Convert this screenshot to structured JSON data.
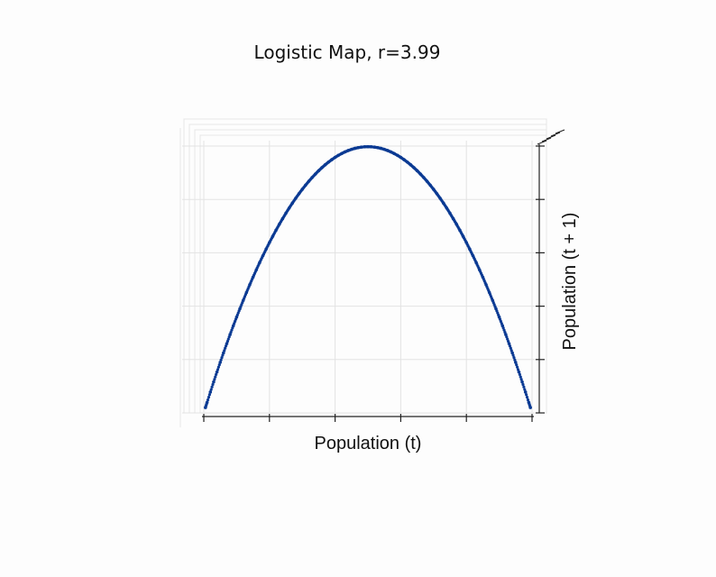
{
  "chart_data": {
    "type": "scatter",
    "title": "Logistic Map, r=3.99",
    "xlabel": "Population (t)",
    "ylabel": "Population (t + 1)",
    "r": 3.99,
    "xlim": [
      0,
      1
    ],
    "ylim": [
      0,
      1
    ],
    "grid": true,
    "tick_labels_shown": false,
    "x_ticks": [
      0,
      0.2,
      0.4,
      0.6,
      0.8,
      1.0
    ],
    "y_ticks": [
      0,
      0.2,
      0.4,
      0.6,
      0.8,
      1.0
    ],
    "marker_color": "#0b3a93",
    "series": [
      {
        "x": [
          0.005,
          0.01,
          0.02,
          0.03,
          0.04,
          0.05,
          0.06,
          0.07,
          0.08,
          0.09,
          0.1,
          0.11,
          0.12,
          0.13,
          0.14,
          0.15,
          0.16,
          0.17,
          0.18,
          0.19,
          0.2,
          0.21,
          0.22,
          0.23,
          0.24,
          0.25,
          0.26,
          0.27,
          0.28,
          0.29,
          0.3,
          0.31,
          0.32,
          0.33,
          0.34,
          0.35,
          0.36,
          0.37,
          0.38,
          0.39,
          0.4,
          0.41,
          0.42,
          0.43,
          0.44,
          0.45,
          0.46,
          0.47,
          0.48,
          0.49,
          0.5,
          0.51,
          0.52,
          0.53,
          0.54,
          0.55,
          0.56,
          0.57,
          0.58,
          0.59,
          0.6,
          0.61,
          0.62,
          0.63,
          0.64,
          0.65,
          0.66,
          0.67,
          0.68,
          0.69,
          0.7,
          0.71,
          0.72,
          0.73,
          0.74,
          0.75,
          0.76,
          0.77,
          0.78,
          0.79,
          0.8,
          0.81,
          0.82,
          0.83,
          0.84,
          0.85,
          0.86,
          0.87,
          0.88,
          0.89,
          0.9,
          0.91,
          0.92,
          0.93,
          0.94,
          0.95,
          0.96,
          0.97,
          0.98,
          0.99,
          0.995
        ],
        "y": [
          0.0199,
          0.0395,
          0.0782,
          0.1161,
          0.1532,
          0.1895,
          0.225,
          0.2597,
          0.2937,
          0.3268,
          0.3591,
          0.3906,
          0.4213,
          0.4513,
          0.4804,
          0.5087,
          0.5363,
          0.563,
          0.5889,
          0.6141,
          0.6384,
          0.6619,
          0.6847,
          0.7066,
          0.7278,
          0.7481,
          0.7677,
          0.7864,
          0.8044,
          0.8215,
          0.8379,
          0.8534,
          0.8682,
          0.8821,
          0.8953,
          0.9077,
          0.9192,
          0.93,
          0.94,
          0.9491,
          0.9576,
          0.9652,
          0.972,
          0.978,
          0.9832,
          0.9876,
          0.9912,
          0.994,
          0.996,
          0.9972,
          0.9975,
          0.9972,
          0.996,
          0.994,
          0.9912,
          0.9876,
          0.9832,
          0.978,
          0.972,
          0.9652,
          0.9576,
          0.9491,
          0.94,
          0.93,
          0.9192,
          0.9077,
          0.8953,
          0.8821,
          0.8682,
          0.8534,
          0.8379,
          0.8215,
          0.8044,
          0.7864,
          0.7677,
          0.7481,
          0.7278,
          0.7066,
          0.6847,
          0.6619,
          0.6384,
          0.6141,
          0.5889,
          0.563,
          0.5363,
          0.5087,
          0.4804,
          0.4513,
          0.4213,
          0.3906,
          0.3591,
          0.3268,
          0.2937,
          0.2597,
          0.225,
          0.1895,
          0.1532,
          0.1161,
          0.0782,
          0.0395,
          0.0199
        ]
      }
    ]
  }
}
